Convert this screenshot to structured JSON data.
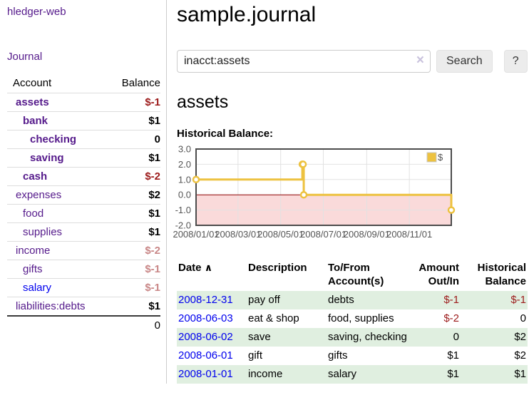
{
  "app": {
    "brand": "hledger-web",
    "nav_journal": "Journal"
  },
  "colors": {
    "accent_purple": "#551a8b",
    "link_blue": "#0000ee",
    "negative_dark": "#9c1a1a",
    "negative_light": "#c98787",
    "row_green": "#e0efe0",
    "chart_gold": "#edc240",
    "chart_negative_bg": "#fadada",
    "chart_zero_line": "#8b0000"
  },
  "sidebar": {
    "accounts_header": {
      "account": "Account",
      "balance": "Balance"
    },
    "accounts": [
      {
        "name": "assets",
        "balance": "$-1",
        "link_class": "acct-link ind-1 bold",
        "bal_class": "bal neg"
      },
      {
        "name": "bank",
        "balance": "$1",
        "link_class": "acct-link ind-2 bold",
        "bal_class": "bal"
      },
      {
        "name": "checking",
        "balance": "0",
        "link_class": "acct-link ind-3 bold",
        "bal_class": "bal"
      },
      {
        "name": "saving",
        "balance": "$1",
        "link_class": "acct-link ind-3 bold",
        "bal_class": "bal"
      },
      {
        "name": "cash",
        "balance": "$-2",
        "link_class": "acct-link ind-2 bold",
        "bal_class": "bal neg"
      },
      {
        "name": "expenses",
        "balance": "$2",
        "link_class": "acct-link ind-1",
        "bal_class": "bal"
      },
      {
        "name": "food",
        "balance": "$1",
        "link_class": "acct-link ind-2",
        "bal_class": "bal"
      },
      {
        "name": "supplies",
        "balance": "$1",
        "link_class": "acct-link ind-2",
        "bal_class": "bal"
      },
      {
        "name": "income",
        "balance": "$-2",
        "link_class": "acct-link ind-1",
        "bal_class": "bal negl"
      },
      {
        "name": "gifts",
        "balance": "$-1",
        "link_class": "acct-link ind-2",
        "bal_class": "bal negl"
      },
      {
        "name": "salary",
        "balance": "$-1",
        "link_class": "acct-link ind-2 blue",
        "bal_class": "bal negl"
      },
      {
        "name": "liabilities:debts",
        "balance": "$1",
        "link_class": "acct-link ind-1",
        "bal_class": "bal"
      }
    ],
    "total": "0"
  },
  "main": {
    "title": "sample.journal",
    "search": {
      "value": "inacct:assets",
      "clear_icon": "×",
      "button_label": "Search",
      "help_label": "?"
    },
    "account_title": "assets",
    "chart_title": "Historical Balance:"
  },
  "chart_data": {
    "type": "line",
    "step": true,
    "title": "Historical Balance:",
    "series": [
      {
        "name": "$",
        "color": "#edc240",
        "points": [
          [
            "2008-01-01",
            1
          ],
          [
            "2008-06-01",
            2
          ],
          [
            "2008-06-02",
            2
          ],
          [
            "2008-06-03",
            0
          ],
          [
            "2008-12-31",
            -1
          ]
        ]
      }
    ],
    "x_range": [
      "2008-01-01",
      "2008-12-31"
    ],
    "x_ticks": [
      "2008/01/01",
      "2008/03/01",
      "2008/05/01",
      "2008/07/01",
      "2008/09/01",
      "2008/11/01"
    ],
    "y_ticks": [
      3,
      2,
      1,
      0,
      -1,
      -2
    ],
    "ylim": [
      -2,
      3
    ],
    "grid": true,
    "legend_position": "top-right",
    "negative_region_color": "#fadada",
    "zero_line_color": "#8b0000",
    "frame_color": "#4c4c4c",
    "grid_color": "#e2e2e2",
    "tick_color": "#545454"
  },
  "register": {
    "headers": {
      "date": "Date",
      "sort_indicator": "∧",
      "description": "Description",
      "accounts": "To/From Account(s)",
      "amount": "Amount Out/In",
      "balance": "Historical Balance"
    },
    "rows": [
      {
        "date": "2008-12-31",
        "description": "pay off",
        "accounts": "debts",
        "amount": "$-1",
        "balance": "$-1",
        "row_class": "shaded",
        "amount_class": "amt neg",
        "balance_class": "amt neg"
      },
      {
        "date": "2008-06-03",
        "description": "eat & shop",
        "accounts": "food, supplies",
        "amount": "$-2",
        "balance": "0",
        "row_class": "",
        "amount_class": "amt neg",
        "balance_class": "amt"
      },
      {
        "date": "2008-06-02",
        "description": "save",
        "accounts": "saving, checking",
        "amount": "0",
        "balance": "$2",
        "row_class": "shaded",
        "amount_class": "amt",
        "balance_class": "amt"
      },
      {
        "date": "2008-06-01",
        "description": "gift",
        "accounts": "gifts",
        "amount": "$1",
        "balance": "$2",
        "row_class": "",
        "amount_class": "amt",
        "balance_class": "amt"
      },
      {
        "date": "2008-01-01",
        "description": "income",
        "accounts": "salary",
        "amount": "$1",
        "balance": "$1",
        "row_class": "shaded",
        "amount_class": "amt",
        "balance_class": "amt"
      }
    ]
  }
}
